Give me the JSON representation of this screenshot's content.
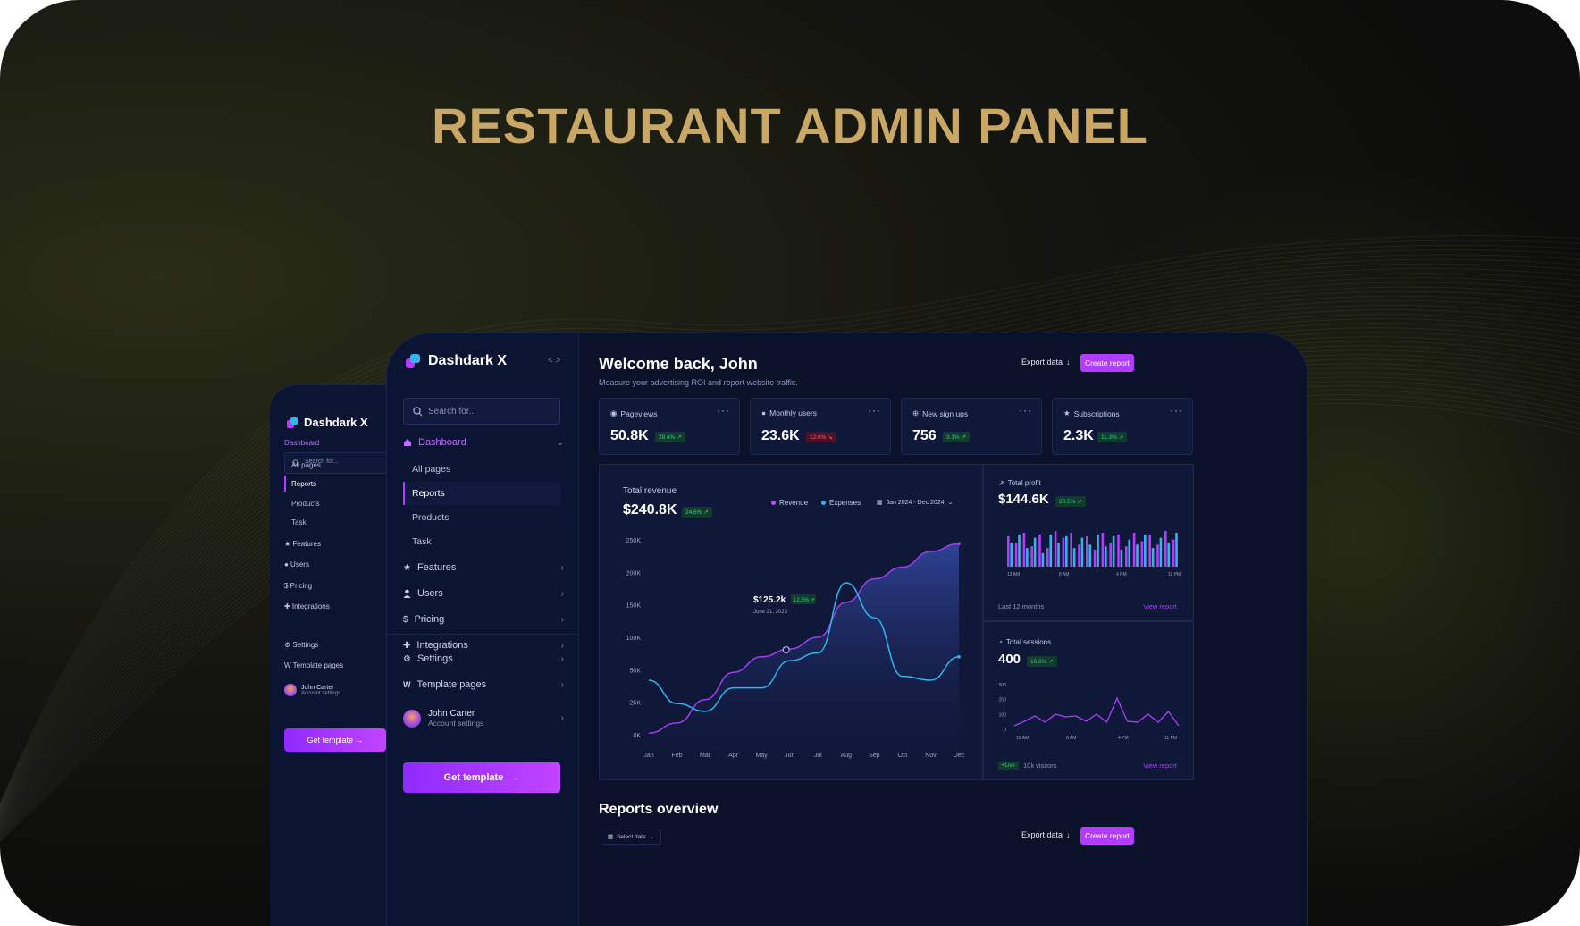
{
  "headline": "RESTAURANT ADMIN PANEL",
  "colors": {
    "accent": "#b23dff",
    "gold": "#c9a865",
    "panel": "#0a1129",
    "up": "#2fd28a",
    "down": "#ff5a84",
    "cyan": "#2db6ef"
  },
  "back_panel": {
    "brand": "Dashdark X",
    "search_placeholder": "Search for...",
    "nav": {
      "dashboard": "Dashboard",
      "subitems": [
        "All pages",
        "Reports",
        "Products",
        "Task"
      ],
      "features": "Features",
      "users": "Users",
      "pricing": "Pricing",
      "integrations": "Integrations",
      "settings": "Settings",
      "template_pages": "Template pages"
    },
    "user": {
      "name": "John Carter",
      "subtitle": "Account settings"
    },
    "get_template": "Get template"
  },
  "sidebar": {
    "brand": "Dashdark X",
    "collapse_icon": "< >",
    "search_placeholder": "Search for...",
    "dashboard": "Dashboard",
    "subitems": [
      "All pages",
      "Reports",
      "Products",
      "Task"
    ],
    "features": "Features",
    "users": "Users",
    "pricing": "Pricing",
    "integrations": "Integrations",
    "settings": "Settings",
    "template_pages": "Template pages",
    "user": {
      "name": "John Carter",
      "subtitle": "Account settings"
    },
    "get_template": "Get template"
  },
  "header": {
    "title": "Welcome back, John",
    "subtitle": "Measure your advertising ROI and report website traffic.",
    "export": "Export data",
    "create": "Create report"
  },
  "kpis": [
    {
      "label": "Pageviews",
      "value": "50.8K",
      "delta": "28.4% ↗",
      "trend": "up",
      "icon": "eye-icon"
    },
    {
      "label": "Monthly users",
      "value": "23.6K",
      "delta": "12.6% ↘",
      "trend": "down",
      "icon": "user-icon"
    },
    {
      "label": "New sign ups",
      "value": "756",
      "delta": "3.1% ↗",
      "trend": "up",
      "icon": "plus-circle-icon"
    },
    {
      "label": "Subscriptions",
      "value": "2.3K",
      "delta": "11.3% ↗",
      "trend": "up",
      "icon": "star-icon"
    }
  ],
  "revenue": {
    "label": "Total revenue",
    "value": "$240.8K",
    "delta": "24.6% ↗",
    "legend": [
      "Revenue",
      "Expenses"
    ],
    "date_range": "Jan 2024 - Dec 2024",
    "tooltip": {
      "value": "$125.2k",
      "delta": "12.5% ↗",
      "date": "June 21, 2023"
    }
  },
  "profit": {
    "label": "Total profit",
    "value": "$144.6K",
    "delta": "28.5% ↗",
    "ticks": [
      "12 AM",
      "8 AM",
      "4 PM",
      "11 PM"
    ],
    "footer": "Last 12 months",
    "link": "View report"
  },
  "sessions": {
    "label": "Total sessions",
    "value": "400",
    "delta": "16.8% ↗",
    "yticks": [
      "500",
      "250",
      "100",
      "0"
    ],
    "ticks": [
      "12 AM",
      "8 AM",
      "4 PM",
      "11 PM"
    ],
    "live": "• Live",
    "visitors": "10k visitors",
    "link": "View report"
  },
  "reports": {
    "title": "Reports overview",
    "select_date": "Select date",
    "export": "Export data",
    "create": "Create report"
  },
  "chart_data": [
    {
      "type": "area",
      "title": "Total revenue",
      "categories": [
        "Jan",
        "Feb",
        "Mar",
        "Apr",
        "May",
        "Jun",
        "Jul",
        "Aug",
        "Sep",
        "Oct",
        "Nov",
        "Dec"
      ],
      "ylim": [
        0,
        250
      ],
      "y_ticks": [
        "250K",
        "200K",
        "150K",
        "100K",
        "50K",
        "25K",
        "0K"
      ],
      "series": [
        {
          "name": "Revenue",
          "color": "#a43cf0",
          "values": [
            2,
            15,
            45,
            80,
            100,
            110,
            125,
            170,
            200,
            215,
            235,
            245
          ]
        },
        {
          "name": "Expenses",
          "color": "#2db6ef",
          "values": [
            70,
            40,
            30,
            60,
            60,
            95,
            105,
            195,
            150,
            75,
            70,
            100
          ]
        }
      ]
    },
    {
      "type": "bar",
      "title": "Total profit",
      "x_ticks": [
        "12 AM",
        "8 AM",
        "4 PM",
        "11 PM"
      ],
      "series": [
        {
          "name": "purple",
          "color": "#b23dff",
          "values": [
            0.9,
            0.7,
            1.0,
            0.6,
            0.95,
            0.55,
            1.05,
            0.85,
            1.0,
            0.65,
            0.9,
            0.5,
            1.0,
            0.7,
            0.95,
            0.6,
            1.0,
            0.75,
            0.95,
            0.65,
            1.05,
            0.8
          ]
        },
        {
          "name": "cyan",
          "color": "#2db6ef",
          "values": [
            0.7,
            0.95,
            0.55,
            0.85,
            0.4,
            0.95,
            0.7,
            0.9,
            0.55,
            0.85,
            0.65,
            0.95,
            0.6,
            0.9,
            0.5,
            0.8,
            0.65,
            0.95,
            0.55,
            0.85,
            0.7,
            1.0
          ]
        }
      ]
    },
    {
      "type": "line",
      "title": "Total sessions",
      "y_ticks": [
        "500",
        "250",
        "100",
        "0"
      ],
      "x_ticks": [
        "12 AM",
        "8 AM",
        "4 PM",
        "11 PM"
      ],
      "ylim": [
        0,
        500
      ],
      "series": [
        {
          "name": "sessions",
          "color": "#b23dff",
          "values": [
            40,
            90,
            150,
            80,
            170,
            140,
            150,
            90,
            170,
            80,
            350,
            90,
            80,
            170,
            80,
            200,
            40
          ]
        }
      ]
    }
  ]
}
